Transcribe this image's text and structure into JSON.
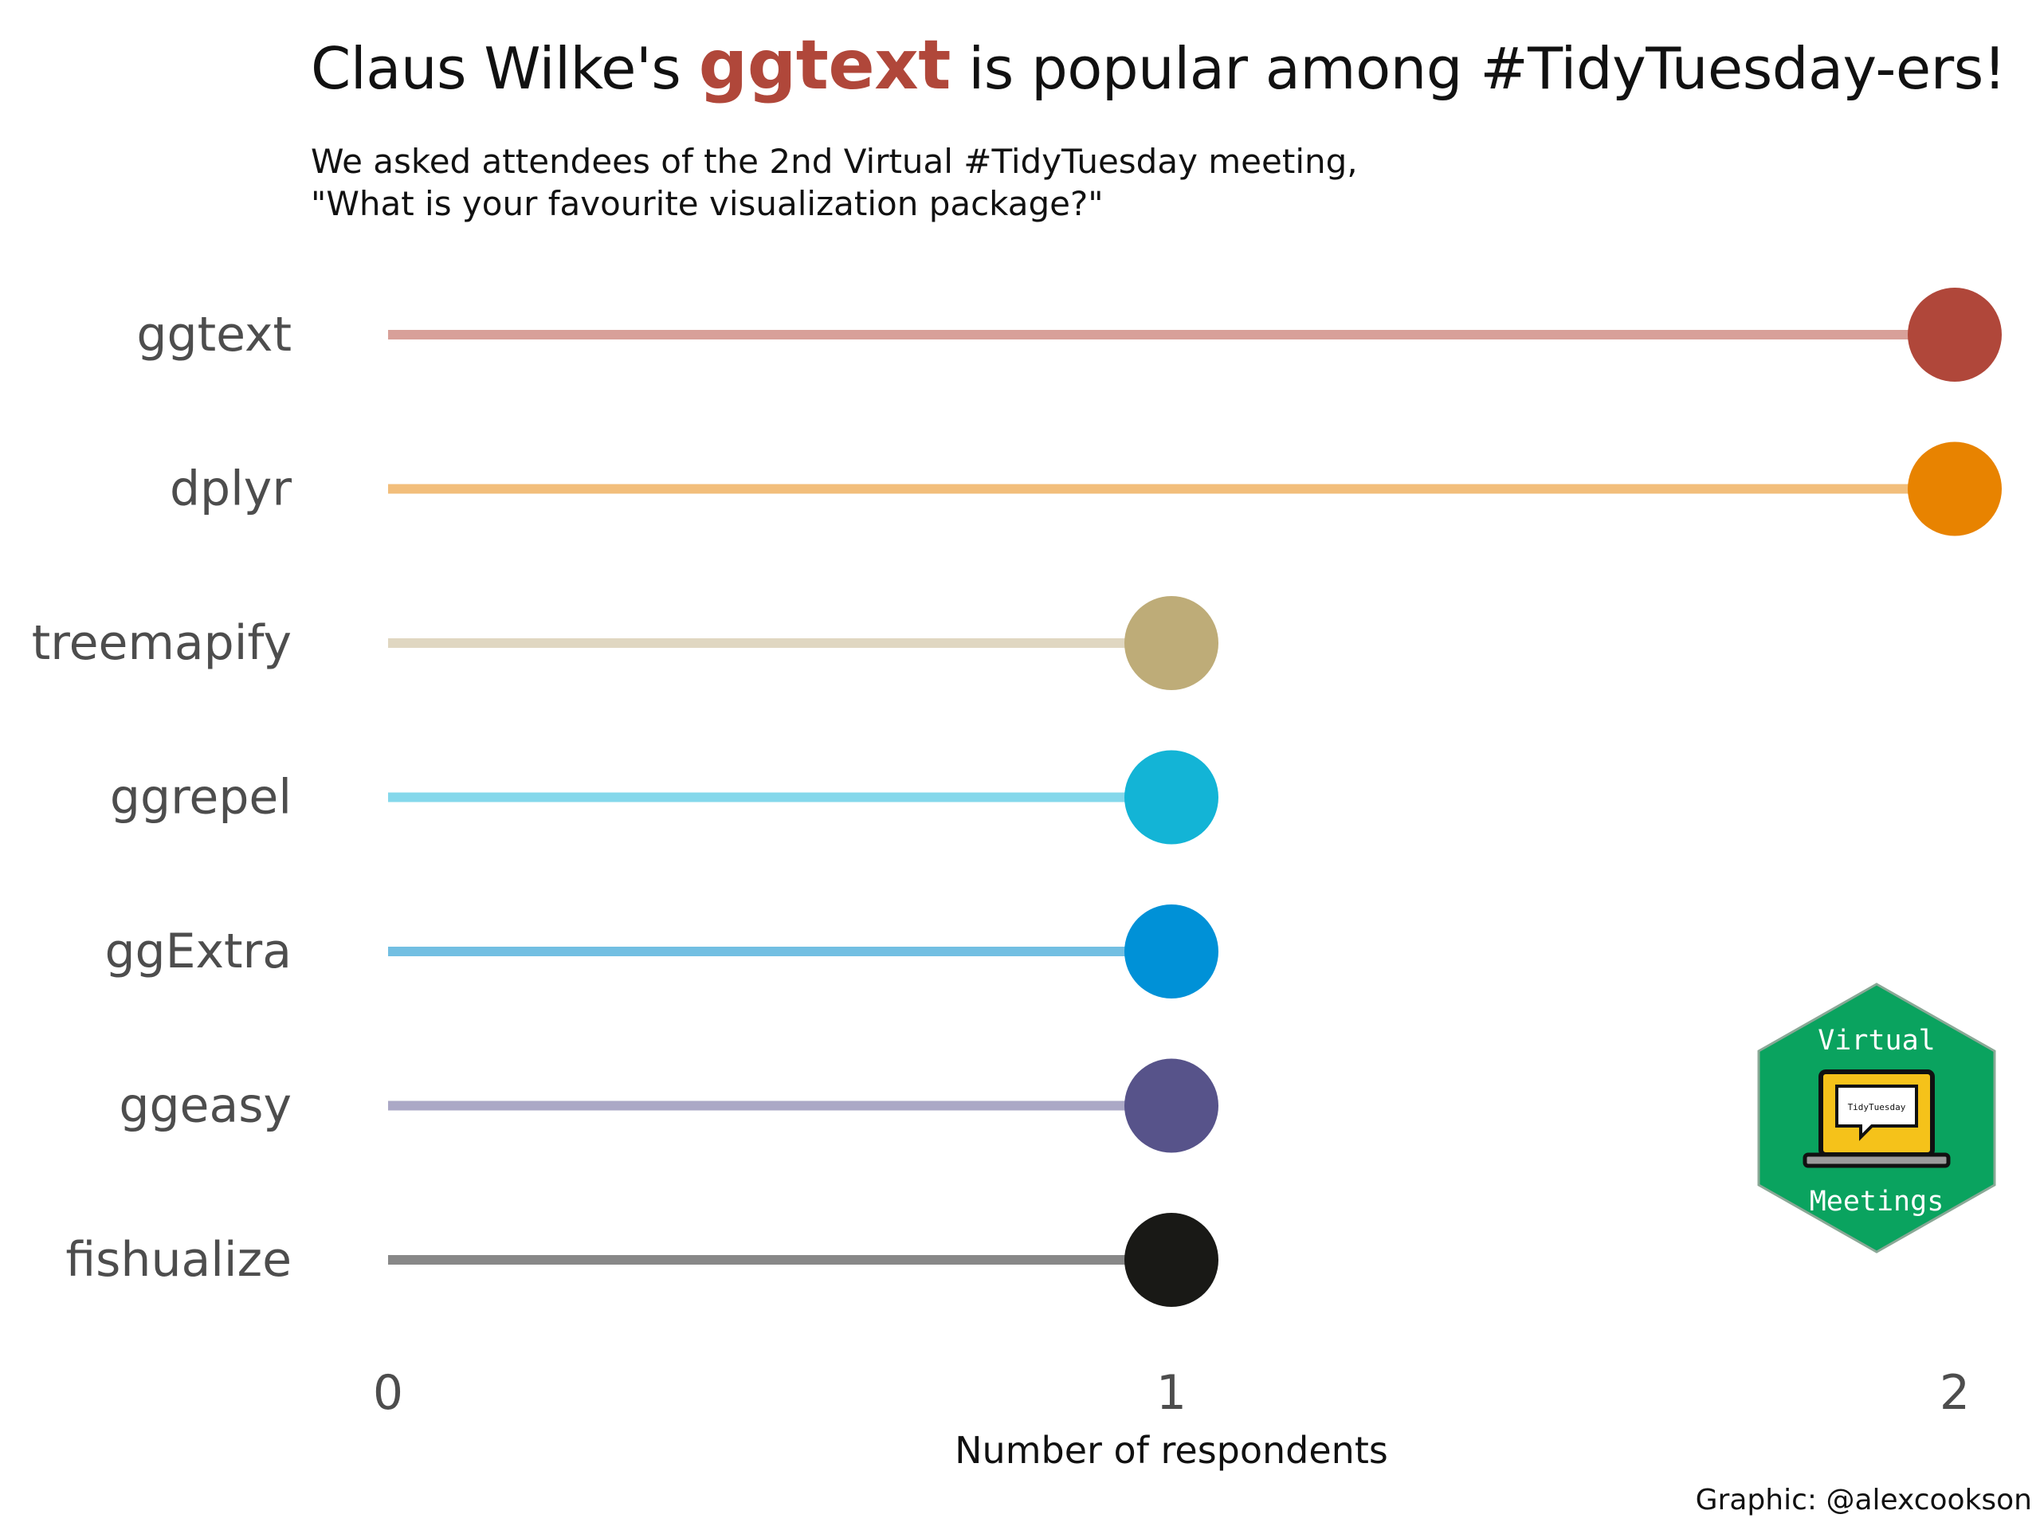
{
  "title": {
    "prefix": "Claus Wilke's ",
    "highlight": "ggtext",
    "suffix": " is popular among #TidyTuesday-ers!",
    "highlight_color": "#B0473A"
  },
  "subtitle": {
    "line1": "We asked attendees of the 2nd Virtual #TidyTuesday meeting,",
    "line2": "\"What is your favourite visualization package?\""
  },
  "caption": "Graphic: @alexcookson",
  "badge": {
    "top_text": "Virtual",
    "bottom_text": "Meetings",
    "screen_text": "TidyTuesday",
    "color": "#0AA35F",
    "screen_color": "#F5C21A",
    "icon": "laptop-speech-bubble-icon"
  },
  "chart_data": {
    "type": "lollipop",
    "categories": [
      "ggtext",
      "dplyr",
      "treemapify",
      "ggrepel",
      "ggExtra",
      "ggeasy",
      "fishualize"
    ],
    "values": [
      2,
      2,
      1,
      1,
      1,
      1,
      1
    ],
    "point_colors": [
      "#B0473A",
      "#E88300",
      "#BEAC78",
      "#13B4D6",
      "#0091D7",
      "#57538A",
      "#191916"
    ],
    "line_colors": [
      "#D8A099",
      "#F2BE7B",
      "#E0D7C1",
      "#85D8EB",
      "#72BFE2",
      "#ABA8C6",
      "#888888"
    ],
    "xlabel": "Number of respondents",
    "xlim": [
      0,
      2
    ],
    "x_ticks": [
      0,
      1,
      2
    ],
    "grid": false,
    "legend": "none"
  }
}
